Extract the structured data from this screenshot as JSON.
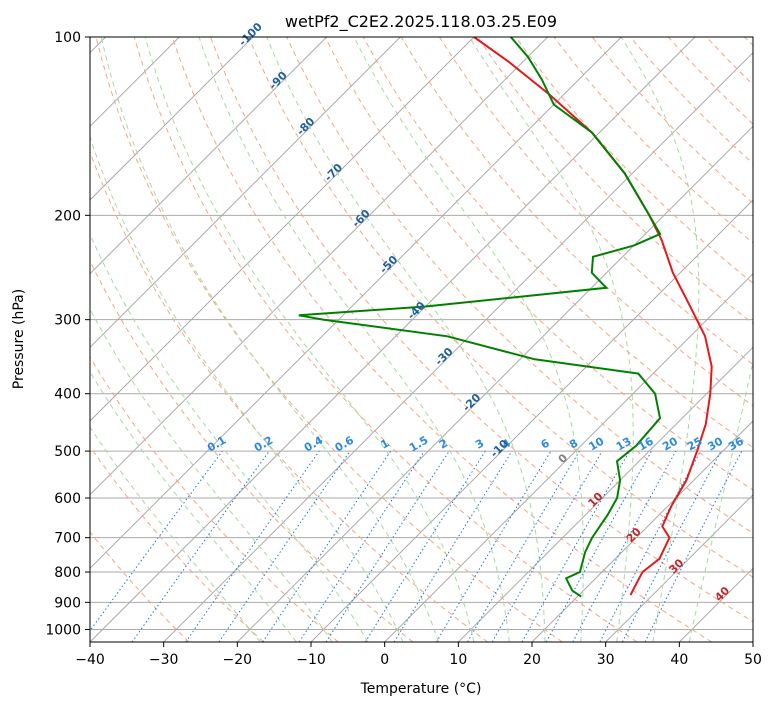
{
  "chart_data": {
    "type": "line",
    "title": "wetPf2_C2E2.2025.118.03.25.E09",
    "xlabel": "Temperature (°C)",
    "ylabel": "Pressure (hPa)",
    "xlim": [
      -40,
      50
    ],
    "ylim": [
      1050,
      100
    ],
    "y_scale": "log",
    "grid": true,
    "x_ticks": [
      -40,
      -30,
      -20,
      -10,
      0,
      10,
      20,
      30,
      40,
      50
    ],
    "y_ticks": [
      100,
      200,
      300,
      400,
      500,
      600,
      700,
      800,
      900,
      1000
    ],
    "skew": 45,
    "series": [
      {
        "color": "#e31a1c",
        "points": [
          {
            "p": 875,
            "t": 27.0
          },
          {
            "p": 850,
            "t": 26.5
          },
          {
            "p": 800,
            "t": 25.5
          },
          {
            "p": 760,
            "t": 26.0
          },
          {
            "p": 700,
            "t": 24.5
          },
          {
            "p": 670,
            "t": 22.0
          },
          {
            "p": 620,
            "t": 20.5
          },
          {
            "p": 560,
            "t": 19.0
          },
          {
            "p": 500,
            "t": 16.5
          },
          {
            "p": 450,
            "t": 14.0
          },
          {
            "p": 400,
            "t": 10.5
          },
          {
            "p": 360,
            "t": 7.0
          },
          {
            "p": 320,
            "t": 2.0
          },
          {
            "p": 280,
            "t": -5.0
          },
          {
            "p": 250,
            "t": -11.0
          },
          {
            "p": 220,
            "t": -17.0
          },
          {
            "p": 200,
            "t": -22.0
          },
          {
            "p": 170,
            "t": -31.0
          },
          {
            "p": 145,
            "t": -41.0
          },
          {
            "p": 125,
            "t": -52.0
          },
          {
            "p": 110,
            "t": -62.0
          },
          {
            "p": 100,
            "t": -70.0
          }
        ]
      },
      {
        "color": "#008000",
        "points": [
          {
            "p": 880,
            "t": 20.5
          },
          {
            "p": 860,
            "t": 18.5
          },
          {
            "p": 820,
            "t": 16.0
          },
          {
            "p": 800,
            "t": 17.0
          },
          {
            "p": 740,
            "t": 15.0
          },
          {
            "p": 700,
            "t": 14.0
          },
          {
            "p": 640,
            "t": 13.0
          },
          {
            "p": 600,
            "t": 12.0
          },
          {
            "p": 560,
            "t": 10.0
          },
          {
            "p": 520,
            "t": 7.0
          },
          {
            "p": 490,
            "t": 7.5
          },
          {
            "p": 440,
            "t": 7.0
          },
          {
            "p": 400,
            "t": 3.0
          },
          {
            "p": 370,
            "t": -2.0
          },
          {
            "p": 350,
            "t": -18.0
          },
          {
            "p": 320,
            "t": -33.0
          },
          {
            "p": 300,
            "t": -52.0
          },
          {
            "p": 295,
            "t": -56.0
          },
          {
            "p": 285,
            "t": -40.0
          },
          {
            "p": 265,
            "t": -18.0
          },
          {
            "p": 250,
            "t": -22.0
          },
          {
            "p": 235,
            "t": -24.0
          },
          {
            "p": 225,
            "t": -20.0
          },
          {
            "p": 215,
            "t": -18.0
          },
          {
            "p": 200,
            "t": -22.0
          },
          {
            "p": 170,
            "t": -31.0
          },
          {
            "p": 145,
            "t": -41.0
          },
          {
            "p": 130,
            "t": -50.0
          },
          {
            "p": 118,
            "t": -55.0
          },
          {
            "p": 108,
            "t": -60.0
          },
          {
            "p": 100,
            "t": -65.0
          }
        ]
      }
    ],
    "dry_adiabat_labels": [
      "-100",
      "-90",
      "-80",
      "-70",
      "-60",
      "-50",
      "-40",
      "-30",
      "-20",
      "-10",
      "0",
      "10",
      "20",
      "30",
      "40"
    ],
    "mixing_ratio_labels": [
      "0.1",
      "0.2",
      "0.4",
      "0.6",
      "1",
      "1.5",
      "2",
      "3",
      "4",
      "6",
      "8",
      "10",
      "13",
      "16",
      "20",
      "25",
      "30",
      "36"
    ],
    "colors": {
      "temperature": "#e31a1c",
      "dewpoint": "#008000",
      "isotherm_grid": "#aaaaaa",
      "dry_adiabat": "#f4a582",
      "moist_adiabat": "#a6d8a0",
      "mixing_ratio": "#1f78d1",
      "label_cold": "#1f5fa0",
      "label_warm": "#c0282a",
      "label_zero": "#808080",
      "label_mixing": "#2b8cdf"
    }
  }
}
